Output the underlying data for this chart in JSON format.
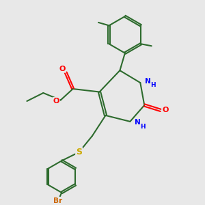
{
  "background_color": "#e8e8e8",
  "bond_color": "#2d6b2d",
  "atom_colors": {
    "O": "#ff0000",
    "N": "#0000ff",
    "S": "#ccaa00",
    "Br": "#cc6600",
    "C": "#2d6b2d"
  },
  "figsize": [
    3.0,
    3.0
  ],
  "dpi": 100,
  "xlim": [
    0,
    10
  ],
  "ylim": [
    0,
    10
  ]
}
